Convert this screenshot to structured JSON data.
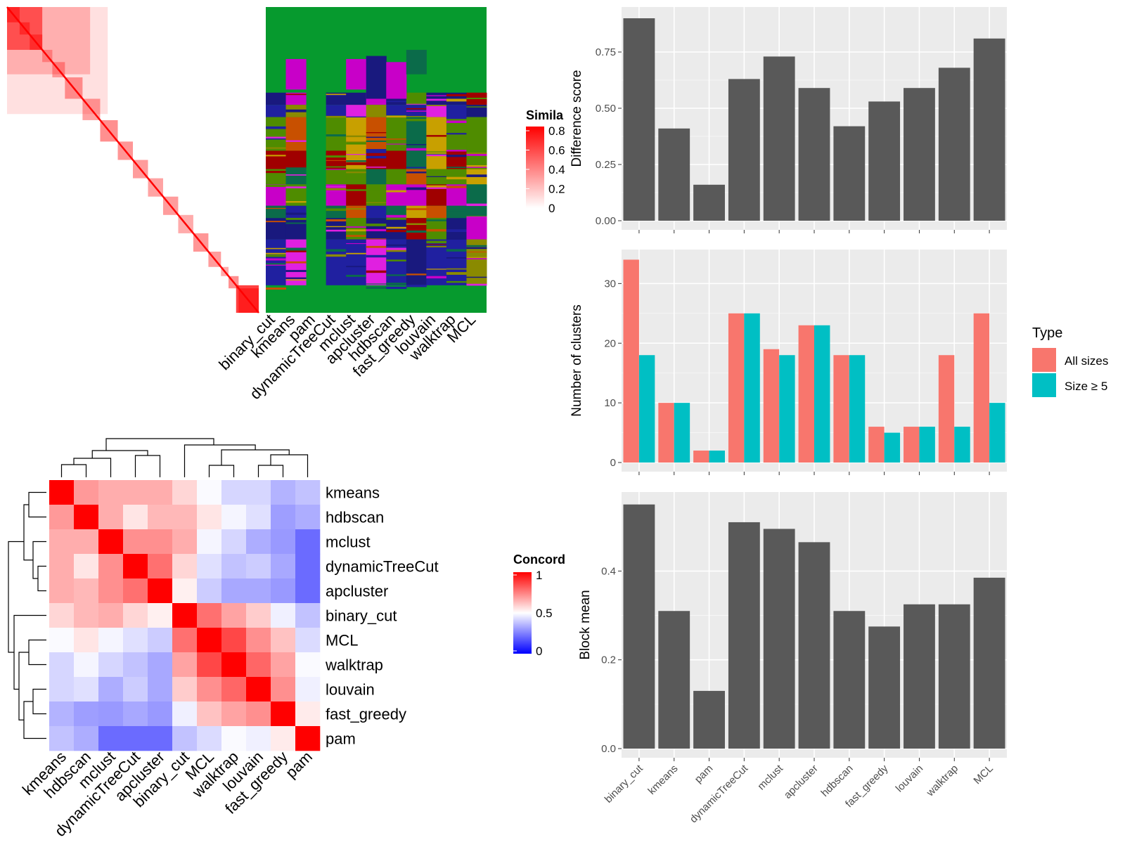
{
  "chart_data": [
    {
      "type": "heatmap",
      "name": "similarity-heatmap",
      "legend_title": "Simila",
      "legend_ticks": [
        "0.8",
        "0.6",
        "0.4",
        "0.2",
        "0"
      ],
      "colors": {
        "low": "#ffffff",
        "high": "#ff0000"
      }
    },
    {
      "type": "heatmap",
      "name": "cluster-membership-heatmap",
      "columns": [
        "binary_cut",
        "kmeans",
        "pam",
        "dynamicTreeCut",
        "mclust",
        "apcluster",
        "hdbscan",
        "fast_greedy",
        "louvain",
        "walktrap",
        "MCL"
      ],
      "background_color": "#069a2e"
    },
    {
      "type": "heatmap",
      "name": "concordance-heatmap",
      "legend_title": "Concord",
      "legend_ticks": [
        "1",
        "0.5",
        "0"
      ],
      "rows": [
        "kmeans",
        "hdbscan",
        "mclust",
        "dynamicTreeCut",
        "apcluster",
        "binary_cut",
        "MCL",
        "walktrap",
        "louvain",
        "fast_greedy",
        "pam"
      ],
      "columns": [
        "kmeans",
        "hdbscan",
        "mclust",
        "dynamicTreeCut",
        "apcluster",
        "binary_cut",
        "MCL",
        "walktrap",
        "louvain",
        "fast_greedy",
        "pam"
      ],
      "values": [
        [
          1.0,
          0.7,
          0.66,
          0.66,
          0.66,
          0.58,
          0.49,
          0.42,
          0.42,
          0.35,
          0.38
        ],
        [
          0.7,
          1.0,
          0.66,
          0.55,
          0.64,
          0.64,
          0.55,
          0.48,
          0.44,
          0.31,
          0.34
        ],
        [
          0.66,
          0.66,
          1.0,
          0.72,
          0.72,
          0.66,
          0.48,
          0.42,
          0.34,
          0.3,
          0.21
        ],
        [
          0.66,
          0.55,
          0.72,
          1.0,
          0.78,
          0.58,
          0.44,
          0.38,
          0.4,
          0.33,
          0.21
        ],
        [
          0.66,
          0.64,
          0.72,
          0.78,
          1.0,
          0.53,
          0.4,
          0.33,
          0.33,
          0.3,
          0.21
        ],
        [
          0.58,
          0.64,
          0.66,
          0.58,
          0.53,
          1.0,
          0.78,
          0.68,
          0.6,
          0.47,
          0.38
        ],
        [
          0.49,
          0.55,
          0.48,
          0.44,
          0.4,
          0.78,
          1.0,
          0.86,
          0.72,
          0.62,
          0.43
        ],
        [
          0.42,
          0.48,
          0.42,
          0.38,
          0.33,
          0.68,
          0.86,
          1.0,
          0.8,
          0.68,
          0.49
        ],
        [
          0.42,
          0.44,
          0.34,
          0.4,
          0.33,
          0.6,
          0.72,
          0.8,
          1.0,
          0.72,
          0.47
        ],
        [
          0.35,
          0.31,
          0.3,
          0.33,
          0.3,
          0.47,
          0.62,
          0.68,
          0.72,
          1.0,
          0.54
        ],
        [
          0.38,
          0.34,
          0.21,
          0.21,
          0.21,
          0.38,
          0.43,
          0.49,
          0.47,
          0.54,
          1.0
        ]
      ]
    },
    {
      "type": "bar",
      "name": "difference-score",
      "categories": [
        "binary_cut",
        "kmeans",
        "pam",
        "dynamicTreeCut",
        "mclust",
        "apcluster",
        "hdbscan",
        "fast_greedy",
        "louvain",
        "walktrap",
        "MCL"
      ],
      "values": [
        0.9,
        0.41,
        0.16,
        0.63,
        0.73,
        0.59,
        0.42,
        0.53,
        0.59,
        0.68,
        0.81
      ],
      "ylabel": "Difference score",
      "yticks": [
        "0.00",
        "0.25",
        "0.50",
        "0.75"
      ],
      "ylim": [
        0,
        0.95
      ],
      "bar_color": "#595959"
    },
    {
      "type": "bar",
      "name": "number-of-clusters",
      "categories": [
        "binary_cut",
        "kmeans",
        "pam",
        "dynamicTreeCut",
        "mclust",
        "apcluster",
        "hdbscan",
        "fast_greedy",
        "louvain",
        "walktrap",
        "MCL"
      ],
      "series": [
        {
          "name": "All sizes",
          "color": "#f8766d",
          "values": [
            34,
            10,
            2,
            25,
            19,
            23,
            18,
            6,
            6,
            18,
            25
          ]
        },
        {
          "name": "Size ≥ 5",
          "color": "#00bfc4",
          "values": [
            18,
            10,
            2,
            25,
            18,
            23,
            18,
            5,
            6,
            6,
            10
          ]
        }
      ],
      "ylabel": "Number of clusters",
      "yticks": [
        "0",
        "10",
        "20",
        "30"
      ],
      "ylim": [
        0,
        35.7
      ],
      "legend_title": "Type",
      "legend": "right"
    },
    {
      "type": "bar",
      "name": "block-mean",
      "categories": [
        "binary_cut",
        "kmeans",
        "pam",
        "dynamicTreeCut",
        "mclust",
        "apcluster",
        "hdbscan",
        "fast_greedy",
        "louvain",
        "walktrap",
        "MCL"
      ],
      "values": [
        0.55,
        0.31,
        0.13,
        0.51,
        0.495,
        0.465,
        0.31,
        0.275,
        0.325,
        0.325,
        0.385
      ],
      "ylabel": "Block mean",
      "yticks": [
        "0.0",
        "0.2",
        "0.4"
      ],
      "ylim": [
        0,
        0.578
      ],
      "bar_color": "#595959"
    }
  ]
}
